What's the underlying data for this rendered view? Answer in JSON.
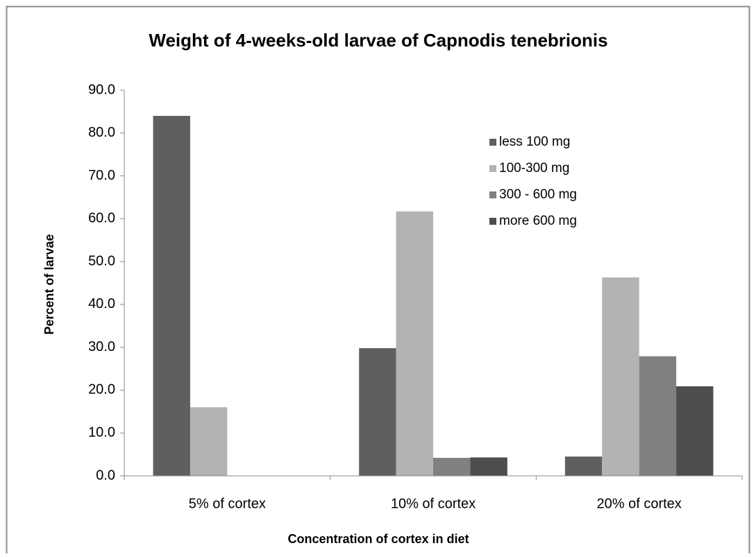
{
  "chart_data": {
    "type": "bar",
    "title": "Weight of 4-weeks-old larvae of Capnodis  tenebrionis",
    "xlabel": "Concentration of cortex in diet",
    "ylabel": "Percent of larvae",
    "categories": [
      "5% of cortex",
      "10% of cortex",
      "20% of cortex"
    ],
    "series": [
      {
        "name": "less 100 mg",
        "color": "#5f5f5f",
        "values": [
          84.0,
          29.8,
          4.5
        ]
      },
      {
        "name": "100-300 mg",
        "color": "#b3b3b3",
        "values": [
          16.0,
          61.7,
          46.3
        ]
      },
      {
        "name": "300 - 600 mg",
        "color": "#808080",
        "values": [
          0,
          4.2,
          27.9
        ]
      },
      {
        "name": "more 600 mg",
        "color": "#4d4d4d",
        "values": [
          0,
          4.3,
          20.9
        ]
      }
    ],
    "ylim": [
      0,
      90
    ],
    "yticks": [
      {
        "value": 0,
        "label": "0.0"
      },
      {
        "value": 10,
        "label": "10.0"
      },
      {
        "value": 20,
        "label": "20.0"
      },
      {
        "value": 30,
        "label": "30.0"
      },
      {
        "value": 40,
        "label": "40.0"
      },
      {
        "value": 50,
        "label": "50.0"
      },
      {
        "value": 60,
        "label": "60.0"
      },
      {
        "value": 70,
        "label": "70.0"
      },
      {
        "value": 80,
        "label": "80.0"
      },
      {
        "value": 90,
        "label": "90.0"
      }
    ],
    "grid": false,
    "legend": "upper right"
  }
}
